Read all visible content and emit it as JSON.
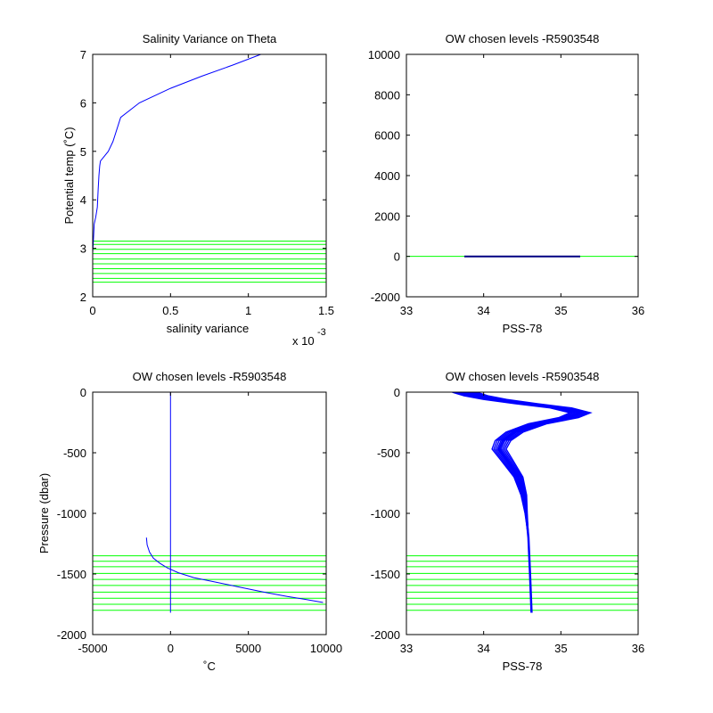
{
  "figure": {
    "background": "#ffffff",
    "line_color": "#0000ff",
    "level_color": "#00ff00",
    "axis_color": "#000000"
  },
  "chart_data": [
    {
      "type": "line",
      "title": "Salinity Variance on Theta",
      "xlabel": "salinity variance",
      "ylabel": "Potential temp (˚C)",
      "x_exponent": "x 10",
      "x_exponent_power": "-3",
      "xlim": [
        0,
        1.5
      ],
      "ylim": [
        2,
        7
      ],
      "xticks": [
        0,
        0.5,
        1,
        1.5
      ],
      "xtick_labels": [
        "0",
        "0.5",
        "1",
        "1.5"
      ],
      "yticks": [
        2,
        3,
        4,
        5,
        6,
        7
      ],
      "ytick_labels": [
        "2",
        "3",
        "4",
        "5",
        "6",
        "7"
      ],
      "grid": false,
      "series": [
        {
          "color": "#0000ff",
          "x": [
            0.0,
            0.005,
            0.01,
            0.02,
            0.03,
            0.035,
            0.04,
            0.045,
            0.05,
            0.1,
            0.13,
            0.18,
            0.3,
            0.5,
            0.7,
            0.9,
            1.08
          ],
          "y": [
            2.9,
            3.2,
            3.5,
            3.65,
            3.85,
            4.2,
            4.5,
            4.7,
            4.8,
            5.0,
            5.2,
            5.7,
            6.0,
            6.3,
            6.55,
            6.78,
            7.0
          ]
        }
      ],
      "hlines": {
        "color": "#00ff00",
        "values": [
          2.3,
          2.38,
          2.48,
          2.58,
          2.68,
          2.78,
          2.89,
          2.98,
          3.08,
          3.15
        ]
      }
    },
    {
      "type": "line",
      "title": "OW chosen levels -R5903548",
      "xlabel": "PSS-78",
      "ylabel": "",
      "xlim": [
        33,
        36
      ],
      "ylim": [
        -2000,
        10000
      ],
      "xticks": [
        33,
        34,
        35,
        36
      ],
      "xtick_labels": [
        "33",
        "34",
        "35",
        "36"
      ],
      "yticks": [
        -2000,
        0,
        2000,
        4000,
        6000,
        8000,
        10000
      ],
      "ytick_labels": [
        "-2000",
        "0",
        "2000",
        "4000",
        "6000",
        "8000",
        "10000"
      ],
      "grid": false,
      "series": [
        {
          "color": "#0000ff",
          "x": [
            33.75,
            35.25
          ],
          "y": [
            0,
            0
          ]
        }
      ],
      "hlines": {
        "color": "#00ff00",
        "values": [
          0
        ]
      }
    },
    {
      "type": "line",
      "title": "OW chosen levels -R5903548",
      "xlabel": "˚C",
      "ylabel": "Pressure (dbar)",
      "xlim": [
        -5000,
        10000
      ],
      "ylim": [
        -2000,
        0
      ],
      "xticks": [
        -5000,
        0,
        5000,
        10000
      ],
      "xtick_labels": [
        "-5000",
        "0",
        "5000",
        "10000"
      ],
      "yticks": [
        -2000,
        -1500,
        -1000,
        -500,
        0
      ],
      "ytick_labels": [
        "-2000",
        "-1500",
        "-1000",
        "-500",
        "0"
      ],
      "grid": false,
      "series": [
        {
          "color": "#0000ff",
          "x": [
            0,
            0
          ],
          "y": [
            0,
            -1820
          ]
        },
        {
          "color": "#0000ff",
          "x": [
            -1550,
            -1500,
            -1350,
            -1100,
            -700,
            -200,
            500,
            1500,
            3000,
            4500,
            6000,
            7500,
            8700,
            9800
          ],
          "y": [
            -1200,
            -1260,
            -1320,
            -1370,
            -1410,
            -1450,
            -1490,
            -1530,
            -1570,
            -1610,
            -1650,
            -1685,
            -1710,
            -1735
          ]
        }
      ],
      "hlines": {
        "color": "#00ff00",
        "values": [
          -1350,
          -1395,
          -1440,
          -1495,
          -1545,
          -1595,
          -1650,
          -1700,
          -1750,
          -1800
        ]
      }
    },
    {
      "type": "line",
      "title": "OW chosen levels -R5903548",
      "xlabel": "PSS-78",
      "ylabel": "",
      "xlim": [
        33,
        36
      ],
      "ylim": [
        -2000,
        0
      ],
      "xticks": [
        33,
        34,
        35,
        36
      ],
      "xtick_labels": [
        "33",
        "34",
        "35",
        "36"
      ],
      "yticks": [
        -2000,
        -1500,
        -1000,
        -500,
        0
      ],
      "ytick_labels": [
        "-2000",
        "-1500",
        "-1000",
        "-500",
        "0"
      ],
      "grid": false,
      "series": [
        {
          "color": "#0000ff",
          "x": [
            33.75,
            33.9,
            34.15,
            34.55,
            35.0,
            35.25,
            35.1,
            34.7,
            34.4,
            34.25,
            34.2,
            34.3,
            34.45,
            34.52,
            34.55,
            34.58,
            34.6,
            34.62
          ],
          "y": [
            0,
            -30,
            -60,
            -95,
            -130,
            -170,
            -210,
            -260,
            -330,
            -400,
            -470,
            -560,
            -700,
            -850,
            -1000,
            -1200,
            -1500,
            -1820
          ]
        }
      ],
      "hlines": {
        "color": "#00ff00",
        "values": [
          -1350,
          -1395,
          -1440,
          -1495,
          -1545,
          -1595,
          -1650,
          -1700,
          -1750,
          -1800
        ]
      }
    }
  ]
}
